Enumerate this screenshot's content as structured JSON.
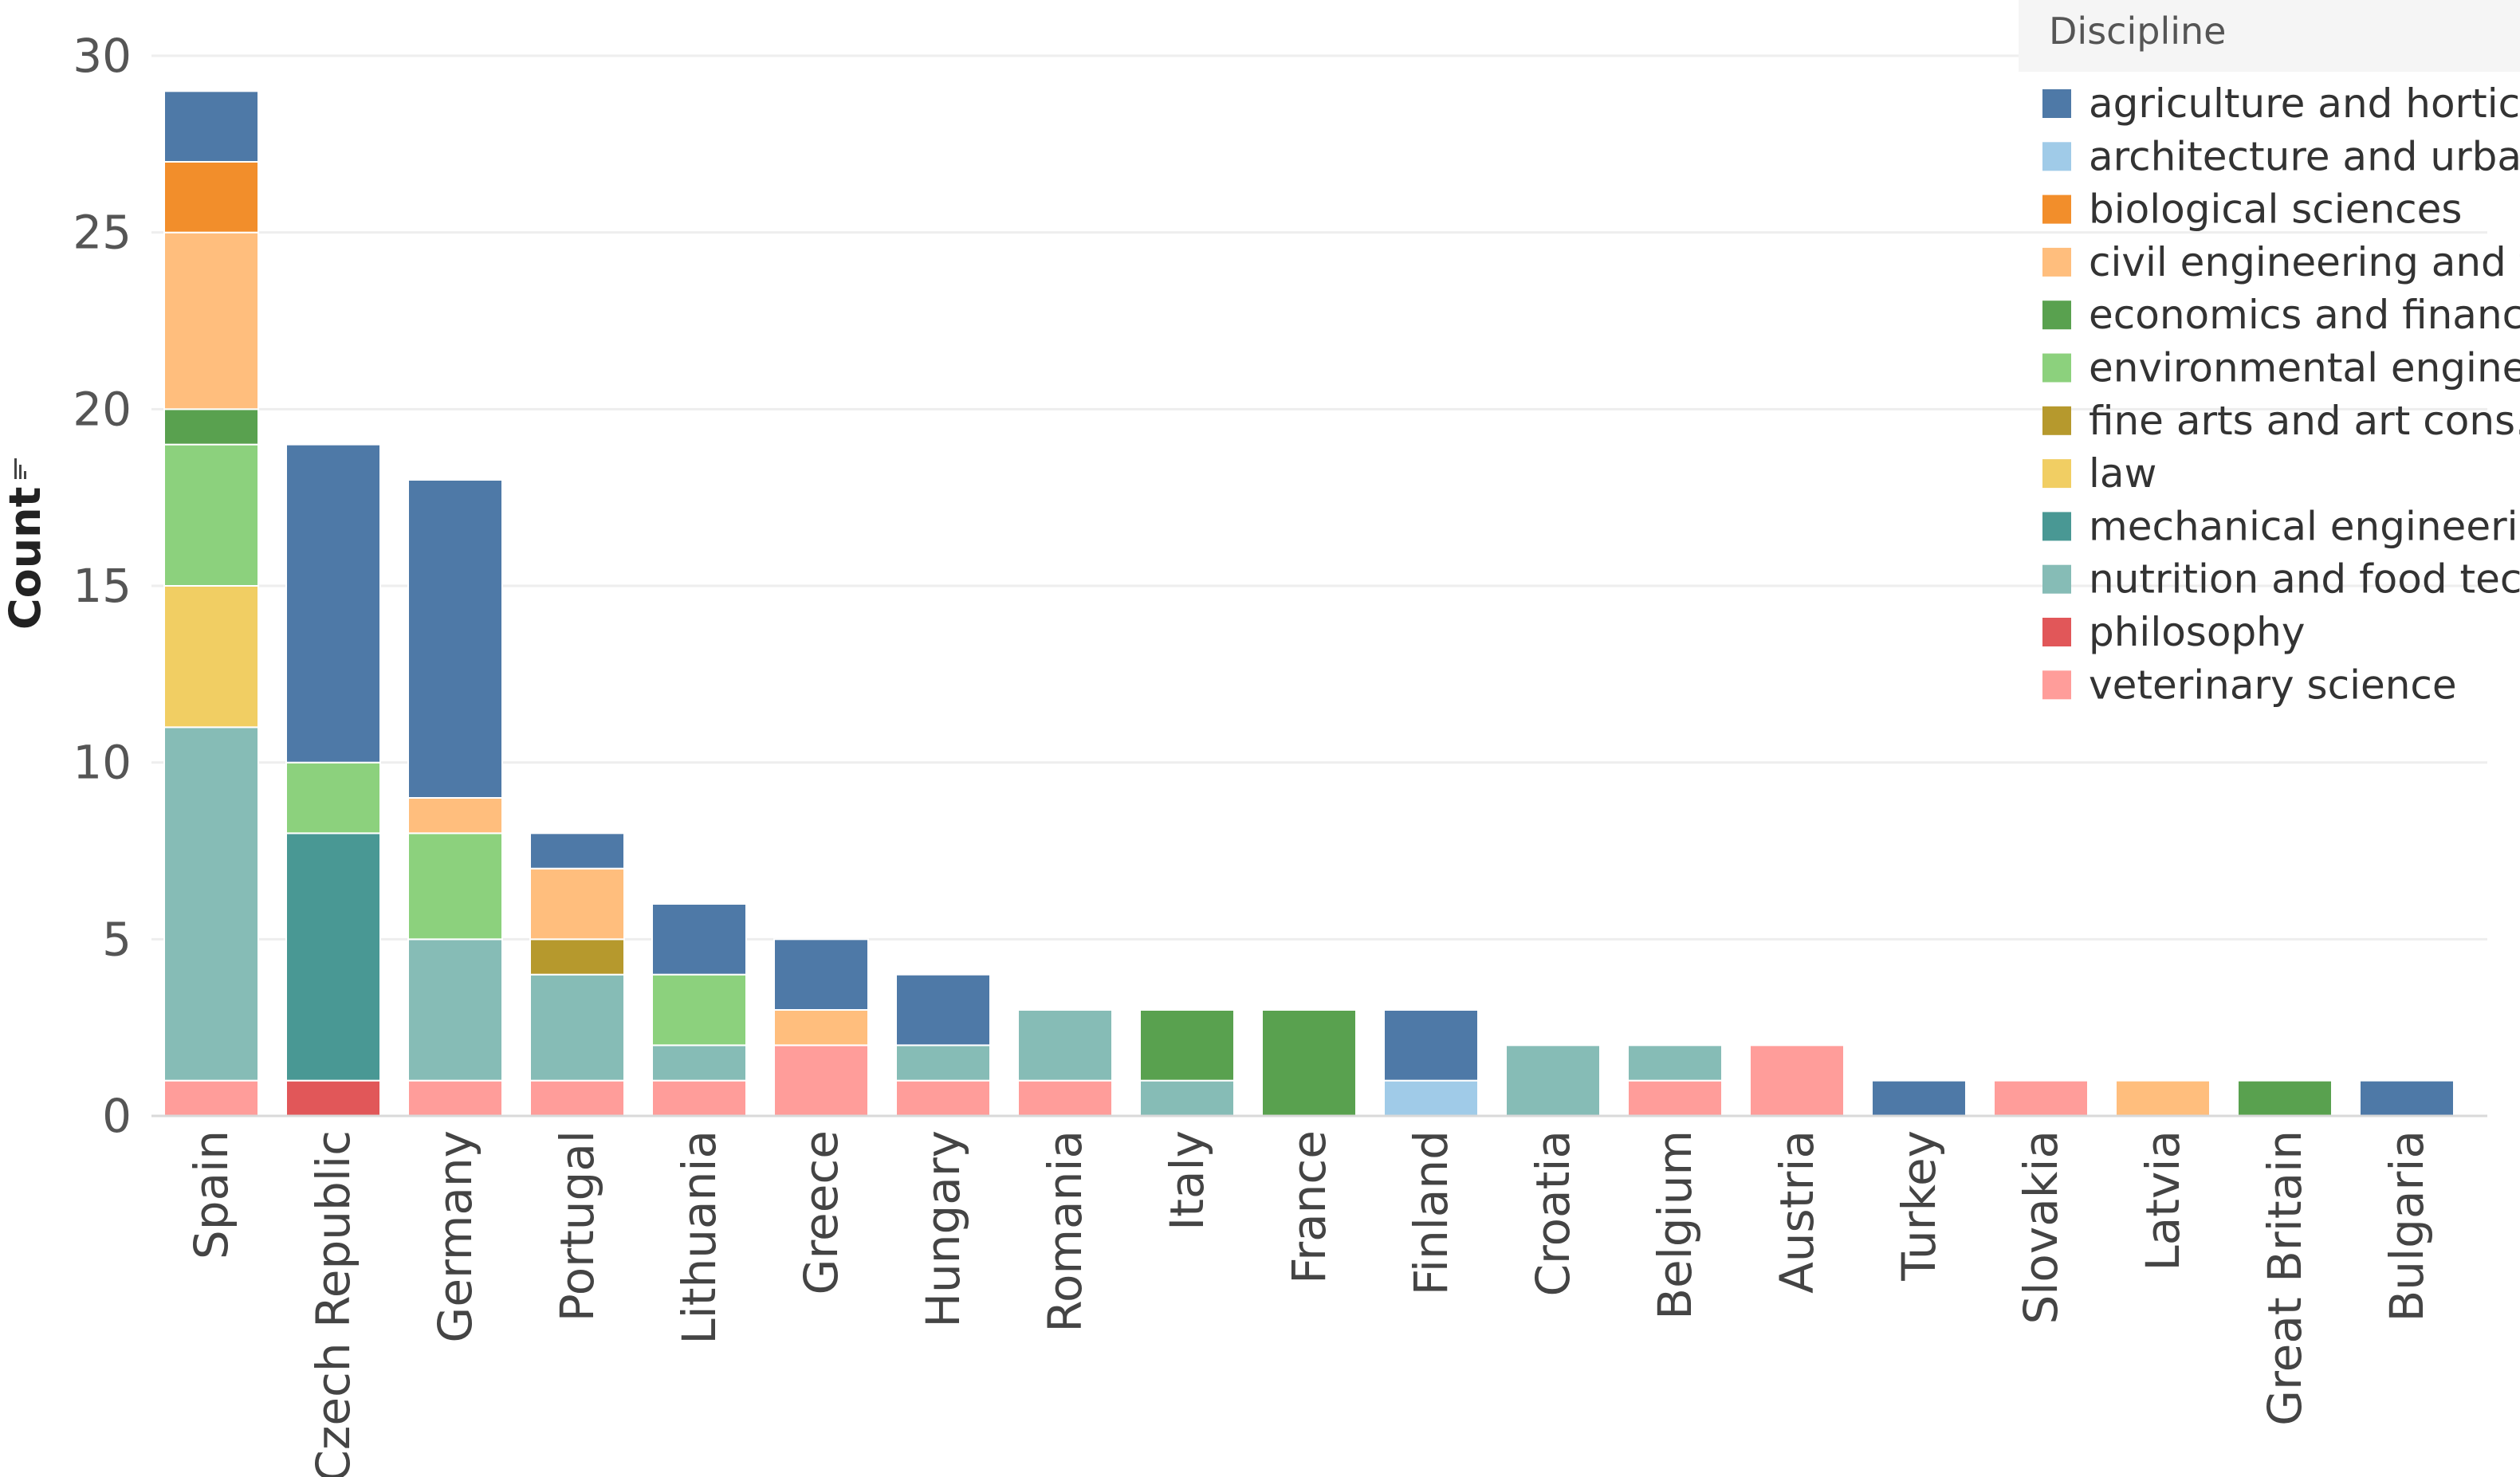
{
  "chart_data": {
    "type": "bar",
    "stacked": true,
    "title": "",
    "xlabel": "",
    "ylabel": "Count",
    "ylim": [
      0,
      30
    ],
    "yticks": [
      0,
      5,
      10,
      15,
      20,
      25,
      30
    ],
    "grid": true,
    "legend": {
      "title": "Discipline",
      "position": "top-right"
    },
    "categories": [
      "Spain",
      "Czech Republic",
      "Germany",
      "Portugal",
      "Lithuania",
      "Greece",
      "Hungary",
      "Romania",
      "Italy",
      "France",
      "Finland",
      "Croatia",
      "Belgium",
      "Austria",
      "Turkey",
      "Slovakia",
      "Latvia",
      "Great Britain",
      "Bulgaria"
    ],
    "series": [
      {
        "name": "veterinary science",
        "color": "#FF9D9A",
        "values": [
          1,
          0,
          1,
          1,
          1,
          2,
          1,
          1,
          0,
          0,
          0,
          0,
          1,
          2,
          0,
          1,
          0,
          0,
          0
        ]
      },
      {
        "name": "philosophy",
        "color": "#E15759",
        "values": [
          0,
          1,
          0,
          0,
          0,
          0,
          0,
          0,
          0,
          0,
          0,
          0,
          0,
          0,
          0,
          0,
          0,
          0,
          0
        ]
      },
      {
        "name": "nutrition and food tec..",
        "color": "#86BCB6",
        "values": [
          10,
          0,
          4,
          3,
          1,
          0,
          1,
          2,
          1,
          0,
          0,
          2,
          1,
          0,
          0,
          0,
          0,
          0,
          0
        ]
      },
      {
        "name": "mechanical engineeri..",
        "color": "#499894",
        "values": [
          0,
          7,
          0,
          0,
          0,
          0,
          0,
          0,
          0,
          0,
          0,
          0,
          0,
          0,
          0,
          0,
          0,
          0,
          0
        ]
      },
      {
        "name": "law",
        "color": "#F1CE63",
        "values": [
          4,
          0,
          0,
          0,
          0,
          0,
          0,
          0,
          0,
          0,
          0,
          0,
          0,
          0,
          0,
          0,
          0,
          0,
          0
        ]
      },
      {
        "name": "fine arts and art cons..",
        "color": "#B6992D",
        "values": [
          0,
          0,
          0,
          1,
          0,
          0,
          0,
          0,
          0,
          0,
          0,
          0,
          0,
          0,
          0,
          0,
          0,
          0,
          0
        ]
      },
      {
        "name": "environmental engine..",
        "color": "#8CD17D",
        "values": [
          4,
          2,
          3,
          0,
          2,
          0,
          0,
          0,
          0,
          0,
          0,
          0,
          0,
          0,
          0,
          0,
          0,
          0,
          0
        ]
      },
      {
        "name": "economics and finance",
        "color": "#59A14F",
        "values": [
          1,
          0,
          0,
          0,
          0,
          0,
          0,
          0,
          2,
          3,
          0,
          0,
          0,
          0,
          0,
          0,
          0,
          1,
          0
        ]
      },
      {
        "name": "civil engineering and t..",
        "color": "#FFBE7D",
        "values": [
          5,
          0,
          1,
          2,
          0,
          1,
          0,
          0,
          0,
          0,
          0,
          0,
          0,
          0,
          0,
          0,
          1,
          0,
          0
        ]
      },
      {
        "name": "biological sciences",
        "color": "#F28E2B",
        "values": [
          2,
          0,
          0,
          0,
          0,
          0,
          0,
          0,
          0,
          0,
          0,
          0,
          0,
          0,
          0,
          0,
          0,
          0,
          0
        ]
      },
      {
        "name": "architecture and urba..",
        "color": "#A0CBE8",
        "values": [
          0,
          0,
          0,
          0,
          0,
          0,
          0,
          0,
          0,
          0,
          1,
          0,
          0,
          0,
          0,
          0,
          0,
          0,
          0
        ]
      },
      {
        "name": "agriculture and hortic..",
        "color": "#4E79A7",
        "values": [
          2,
          9,
          9,
          1,
          2,
          2,
          2,
          0,
          0,
          0,
          2,
          0,
          0,
          0,
          1,
          0,
          0,
          0,
          1
        ]
      }
    ],
    "legend_order": [
      "agriculture and hortic..",
      "architecture and urba..",
      "biological sciences",
      "civil engineering and t..",
      "economics and finance",
      "environmental engine..",
      "fine arts and art cons..",
      "law",
      "mechanical engineeri..",
      "nutrition and food tec..",
      "philosophy",
      "veterinary science"
    ]
  }
}
